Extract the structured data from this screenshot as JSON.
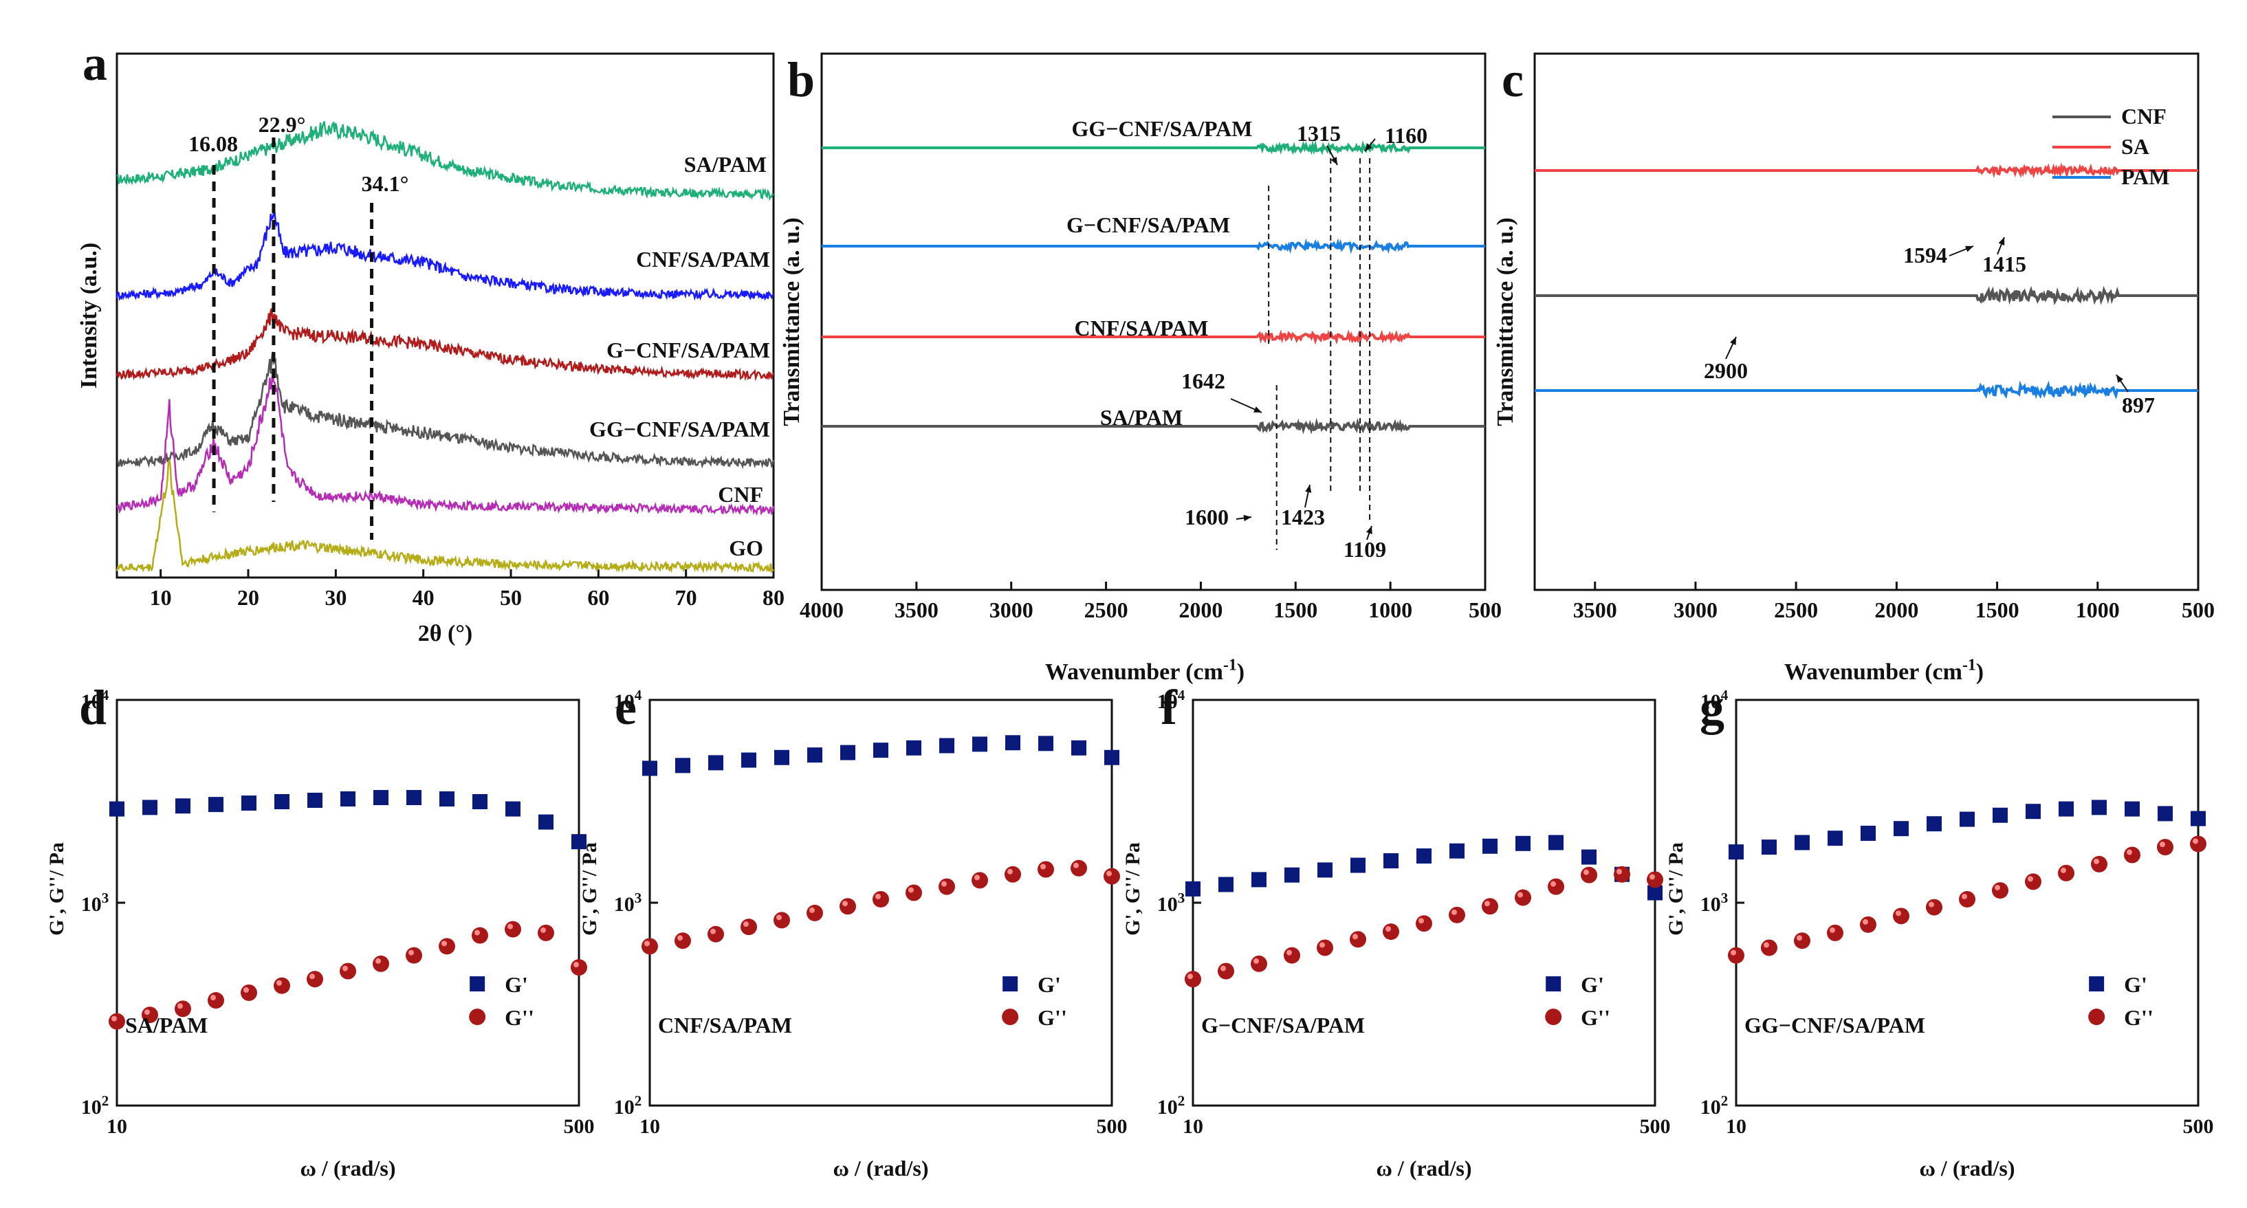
{
  "chart_data": [
    {
      "panel": "a",
      "type": "line",
      "xlabel": "2θ (°)",
      "ylabel": "Intensity (a.u.)",
      "xlim": [
        5,
        80
      ],
      "xticks": [
        10,
        20,
        30,
        40,
        50,
        60,
        70,
        80
      ],
      "series": [
        {
          "name": "SA/PAM",
          "color": "#1fb07a",
          "points": [
            [
              5,
              0.14
            ],
            [
              10,
              0.16
            ],
            [
              15,
              0.2
            ],
            [
              20,
              0.3
            ],
            [
              25,
              0.4
            ],
            [
              29,
              0.48
            ],
            [
              33,
              0.44
            ],
            [
              38,
              0.34
            ],
            [
              45,
              0.2
            ],
            [
              55,
              0.1
            ],
            [
              65,
              0.06
            ],
            [
              80,
              0.04
            ]
          ]
        },
        {
          "name": "CNF/SA/PAM",
          "color": "#1a1aff",
          "points": [
            [
              5,
              0.04
            ],
            [
              12,
              0.06
            ],
            [
              15,
              0.12
            ],
            [
              16.1,
              0.2
            ],
            [
              18,
              0.12
            ],
            [
              21,
              0.25
            ],
            [
              22.9,
              0.6
            ],
            [
              24,
              0.32
            ],
            [
              27,
              0.33
            ],
            [
              30,
              0.36
            ],
            [
              34,
              0.3
            ],
            [
              40,
              0.26
            ],
            [
              45,
              0.16
            ],
            [
              55,
              0.08
            ],
            [
              65,
              0.05
            ],
            [
              80,
              0.04
            ]
          ]
        },
        {
          "name": "G−CNF/SA/PAM",
          "color": "#b01c1c",
          "points": [
            [
              5,
              0.04
            ],
            [
              12,
              0.06
            ],
            [
              16,
              0.1
            ],
            [
              20,
              0.18
            ],
            [
              22.9,
              0.45
            ],
            [
              24,
              0.32
            ],
            [
              28,
              0.3
            ],
            [
              34.1,
              0.28
            ],
            [
              40,
              0.24
            ],
            [
              50,
              0.14
            ],
            [
              60,
              0.08
            ],
            [
              70,
              0.05
            ],
            [
              80,
              0.04
            ]
          ]
        },
        {
          "name": "GG−CNF/SA/PAM",
          "color": "#555555",
          "points": [
            [
              5,
              0.04
            ],
            [
              10,
              0.06
            ],
            [
              14,
              0.12
            ],
            [
              16,
              0.3
            ],
            [
              18,
              0.18
            ],
            [
              20,
              0.2
            ],
            [
              22.9,
              0.75
            ],
            [
              24,
              0.42
            ],
            [
              27,
              0.36
            ],
            [
              30,
              0.33
            ],
            [
              35,
              0.28
            ],
            [
              40,
              0.24
            ],
            [
              50,
              0.14
            ],
            [
              60,
              0.08
            ],
            [
              70,
              0.05
            ],
            [
              80,
              0.04
            ]
          ]
        },
        {
          "name": "CNF",
          "color": "#b42db4",
          "points": [
            [
              5,
              0.04
            ],
            [
              10,
              0.1
            ],
            [
              11,
              0.7
            ],
            [
              12,
              0.14
            ],
            [
              14,
              0.2
            ],
            [
              16,
              0.48
            ],
            [
              18,
              0.22
            ],
            [
              20,
              0.3
            ],
            [
              22.9,
              0.95
            ],
            [
              24.5,
              0.28
            ],
            [
              28,
              0.12
            ],
            [
              34.5,
              0.12
            ],
            [
              40,
              0.06
            ],
            [
              80,
              0.03
            ]
          ]
        },
        {
          "name": "GO",
          "color": "#b5ad17",
          "points": [
            [
              5,
              0.03
            ],
            [
              9,
              0.03
            ],
            [
              11,
              0.7
            ],
            [
              12.5,
              0.06
            ],
            [
              18,
              0.12
            ],
            [
              25,
              0.18
            ],
            [
              32,
              0.14
            ],
            [
              40,
              0.08
            ],
            [
              50,
              0.05
            ],
            [
              80,
              0.03
            ]
          ]
        }
      ],
      "annotations": [
        "16.08",
        "22.9°",
        "34.1°"
      ]
    },
    {
      "panel": "b",
      "type": "line",
      "xlabel": "Wavenumber (cm⁻¹)",
      "ylabel": "Transmittance (a. u.)",
      "xlim": [
        4000,
        500
      ],
      "xticks": [
        4000,
        3500,
        3000,
        2500,
        2000,
        1500,
        1000,
        500
      ],
      "series": [
        {
          "name": "GG−CNF/SA/PAM",
          "color": "#1fb07a"
        },
        {
          "name": "G−CNF/SA/PAM",
          "color": "#1a7fe0"
        },
        {
          "name": "CNF/SA/PAM",
          "color": "#ee4444"
        },
        {
          "name": "SA/PAM",
          "color": "#555555"
        }
      ],
      "annotations": [
        "1315",
        "1160",
        "1642",
        "1600",
        "1423",
        "1109"
      ]
    },
    {
      "panel": "c",
      "type": "line",
      "xlabel": "Wavenumber (cm⁻¹)",
      "ylabel": "Transmittance (a. u.)",
      "xlim": [
        3800,
        500
      ],
      "xticks": [
        3500,
        3000,
        2500,
        2000,
        1500,
        1000,
        500
      ],
      "series": [
        {
          "name": "CNF",
          "color": "#555555"
        },
        {
          "name": "SA",
          "color": "#ee4444"
        },
        {
          "name": "PAM",
          "color": "#1a7fe0"
        }
      ],
      "annotations": [
        "1594",
        "1415",
        "2900",
        "897"
      ]
    },
    {
      "panel": "d",
      "type": "scatter",
      "sample": "SA/PAM",
      "xlabel": "ω / (rad/s)",
      "ylabel": "G', G''/ Pa",
      "xlim": [
        10,
        500
      ],
      "ylim": [
        100,
        10000
      ],
      "series": [
        {
          "name": "G'",
          "values": [
            2900,
            2950,
            3000,
            3050,
            3100,
            3150,
            3200,
            3250,
            3300,
            3300,
            3250,
            3150,
            2900,
            2500,
            2000
          ]
        },
        {
          "name": "G''",
          "values": [
            260,
            280,
            300,
            330,
            360,
            390,
            420,
            460,
            500,
            550,
            610,
            690,
            740,
            710,
            480
          ]
        }
      ]
    },
    {
      "panel": "e",
      "type": "scatter",
      "sample": "CNF/SA/PAM",
      "xlabel": "ω / (rad/s)",
      "ylabel": "G', G''/ Pa",
      "xlim": [
        10,
        500
      ],
      "ylim": [
        100,
        10000
      ],
      "series": [
        {
          "name": "G'",
          "values": [
            4600,
            4750,
            4900,
            5050,
            5200,
            5350,
            5500,
            5650,
            5800,
            5950,
            6050,
            6150,
            6100,
            5800,
            5200
          ]
        },
        {
          "name": "G''",
          "values": [
            610,
            650,
            700,
            760,
            820,
            890,
            960,
            1040,
            1120,
            1200,
            1290,
            1380,
            1460,
            1480,
            1350
          ]
        }
      ]
    },
    {
      "panel": "f",
      "type": "scatter",
      "sample": "G−CNF/SA/PAM",
      "xlabel": "ω / (rad/s)",
      "ylabel": "G', G''/ Pa",
      "xlim": [
        10,
        500
      ],
      "ylim": [
        100,
        10000
      ],
      "series": [
        {
          "name": "G'",
          "values": [
            1170,
            1230,
            1300,
            1370,
            1450,
            1530,
            1610,
            1700,
            1800,
            1900,
            1960,
            1980,
            1680,
            1380,
            1120
          ]
        },
        {
          "name": "G''",
          "values": [
            420,
            460,
            500,
            550,
            600,
            660,
            720,
            790,
            870,
            960,
            1060,
            1200,
            1370,
            1380,
            1300
          ]
        }
      ]
    },
    {
      "panel": "g",
      "type": "scatter",
      "sample": "GG−CNF/SA/PAM",
      "xlabel": "ω / (rad/s)",
      "ylabel": "G', G''/ Pa",
      "xlim": [
        10,
        500
      ],
      "ylim": [
        100,
        10000
      ],
      "series": [
        {
          "name": "G'",
          "values": [
            1780,
            1880,
            1980,
            2080,
            2200,
            2320,
            2450,
            2580,
            2700,
            2820,
            2900,
            2950,
            2900,
            2750,
            2600
          ]
        },
        {
          "name": "G''",
          "values": [
            550,
            600,
            650,
            710,
            780,
            860,
            950,
            1040,
            1150,
            1270,
            1400,
            1550,
            1720,
            1880,
            1950
          ]
        }
      ]
    }
  ]
}
